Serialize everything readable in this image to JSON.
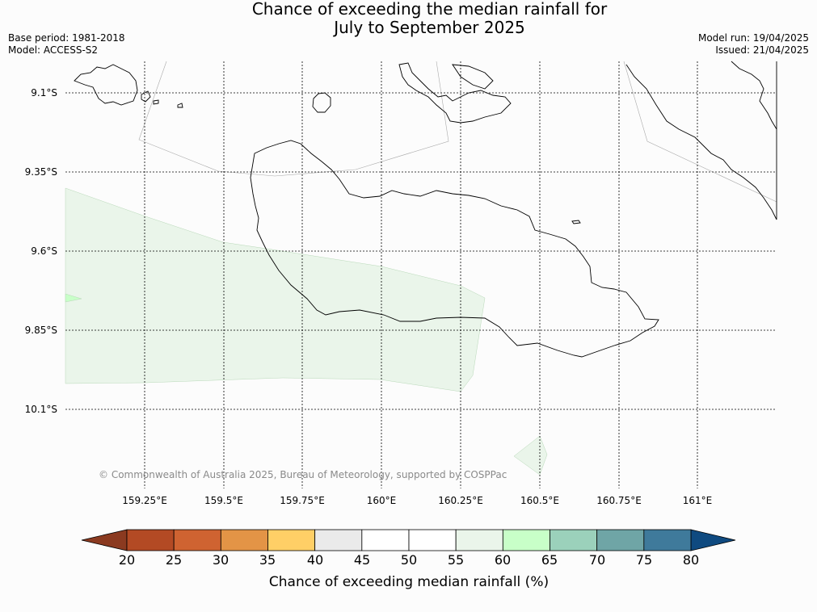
{
  "header": {
    "title_line1": "Chance of exceeding the median rainfall for",
    "title_line2": "July to September 2025",
    "base_period": "Base period: 1981-2018",
    "model": "Model: ACCESS-S2",
    "model_run": "Model run: 19/04/2025",
    "issued": "Issued: 21/04/2025"
  },
  "map": {
    "latitude_labels": [
      "9.1°S",
      "9.35°S",
      "9.6°S",
      "9.85°S",
      "10.1°S"
    ],
    "longitude_labels": [
      "159.25°E",
      "159.5°E",
      "159.75°E",
      "160°E",
      "160.25°E",
      "160.5°E",
      "160.75°E",
      "161°E"
    ],
    "copyright": "© Commonwealth of Australia 2025, Bureau of Meteorology, supported by COSPPac"
  },
  "colorbar": {
    "title": "Chance of exceeding median rainfall (%)",
    "ticks": [
      "20",
      "25",
      "30",
      "35",
      "40",
      "45",
      "50",
      "55",
      "60",
      "65",
      "70",
      "75",
      "80"
    ],
    "under_color": "#8b3a20",
    "over_color": "#0f4a80",
    "colors": [
      "#b34a24",
      "#cf6331",
      "#e39446",
      "#ffcf66",
      "#eaeaea",
      "#ffffff",
      "#ffffff",
      "#eaf5ea",
      "#c8ffc8",
      "#9bd1bb",
      "#6fa5a6",
      "#3f7a9b"
    ]
  }
}
